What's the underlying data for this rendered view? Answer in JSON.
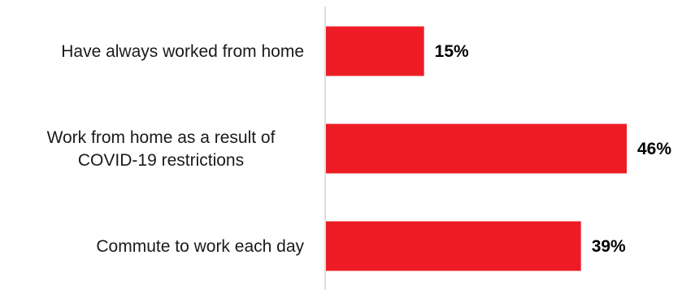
{
  "chart_data": {
    "type": "bar",
    "orientation": "horizontal",
    "categories": [
      [
        "Have always worked from home"
      ],
      [
        "Work from home as a result of",
        "COVID-19 restrictions"
      ],
      [
        "Commute to work each day"
      ]
    ],
    "values": [
      15,
      46,
      39
    ],
    "value_labels": [
      "15%",
      "46%",
      "39%"
    ],
    "xlim": [
      0,
      50
    ],
    "bar_color": "#ed1c24",
    "axis_color": "#c8c8c8",
    "grid": false,
    "legend": "none"
  }
}
